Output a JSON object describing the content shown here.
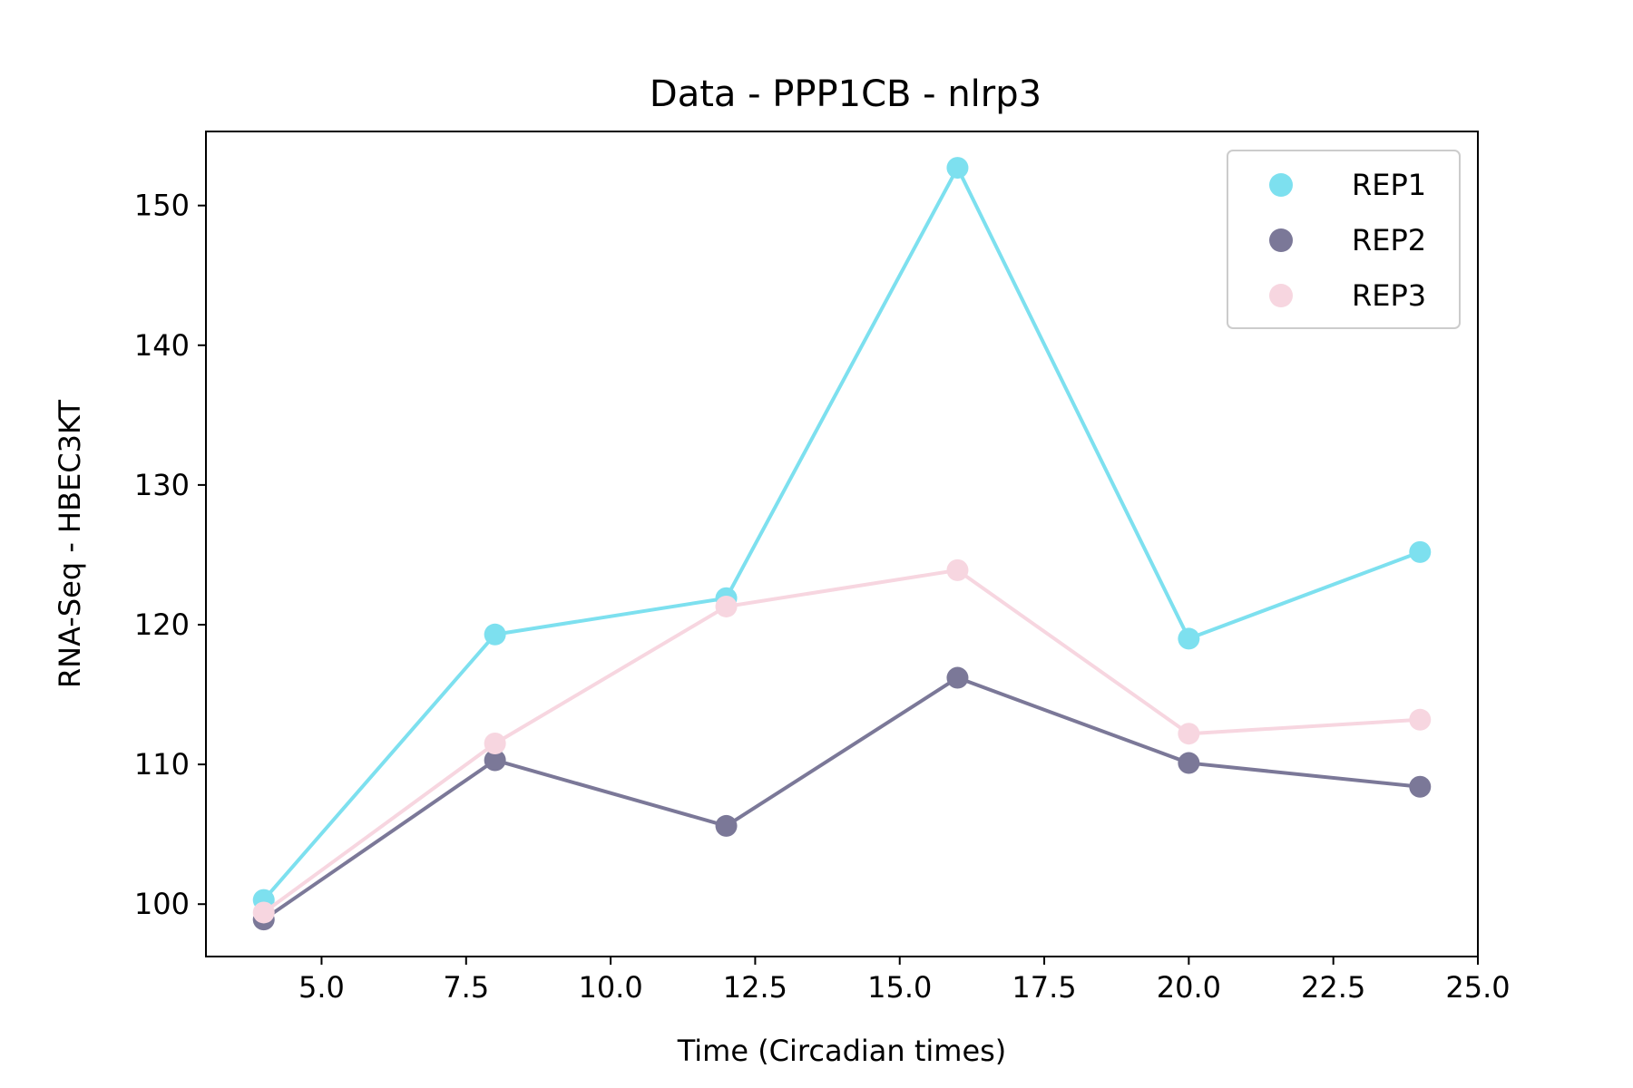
{
  "chart_data": {
    "type": "line",
    "title": "Data - PPP1CB - nlrp3",
    "xlabel": "Time (Circadian times)",
    "ylabel": "RNA-Seq - HBEC3KT",
    "xlim": [
      3.0,
      25.0
    ],
    "ylim": [
      96.25,
      155.3
    ],
    "x_ticks": [
      5.0,
      7.5,
      10.0,
      12.5,
      15.0,
      17.5,
      20.0,
      22.5,
      25.0
    ],
    "x_tick_labels": [
      "5.0",
      "7.5",
      "10.0",
      "12.5",
      "15.0",
      "17.5",
      "20.0",
      "22.5",
      "25.0"
    ],
    "y_ticks": [
      100,
      110,
      120,
      130,
      140,
      150
    ],
    "y_tick_labels": [
      "100",
      "110",
      "120",
      "130",
      "140",
      "150"
    ],
    "grid": false,
    "legend_position": "top-right",
    "x": [
      4,
      8,
      12,
      16,
      20,
      24
    ],
    "series": [
      {
        "name": "REP1",
        "color": "#7de0ef",
        "values": [
          100.3,
          119.3,
          121.9,
          152.7,
          119.0,
          125.2
        ]
      },
      {
        "name": "REP2",
        "color": "#7b7898",
        "values": [
          98.9,
          110.3,
          105.6,
          116.2,
          110.1,
          108.4
        ]
      },
      {
        "name": "REP3",
        "color": "#f7d6e0",
        "values": [
          99.4,
          111.5,
          121.3,
          123.9,
          112.2,
          113.2
        ]
      }
    ]
  }
}
